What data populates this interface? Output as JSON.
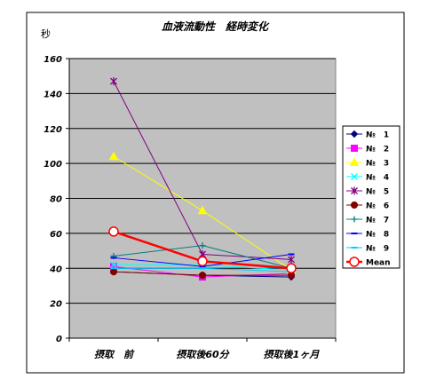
{
  "chart_data": {
    "type": "line",
    "title": "血液流動性　経時変化",
    "ylabel": "秒",
    "xlabel": "",
    "categories": [
      "摂取　前",
      "摂取後60分",
      "摂取後1ヶ月"
    ],
    "ylim": [
      0,
      160
    ],
    "yticks": [
      0,
      20,
      40,
      60,
      80,
      100,
      120,
      140,
      160
    ],
    "grid": true,
    "legend_position": "right",
    "plot_background": "#c0c0c0",
    "series": [
      {
        "name": "№　1",
        "values": [
          38,
          36,
          35
        ],
        "color": "#000080",
        "marker": "diamond"
      },
      {
        "name": "№　2",
        "values": [
          41,
          35,
          37
        ],
        "color": "#ff00ff",
        "marker": "square"
      },
      {
        "name": "№　3",
        "values": [
          104,
          73,
          39
        ],
        "color": "#ffff00",
        "marker": "triangle"
      },
      {
        "name": "№　4",
        "values": [
          42,
          42,
          39
        ],
        "color": "#00ffff",
        "marker": "x"
      },
      {
        "name": "№　5",
        "values": [
          147,
          48,
          45
        ],
        "color": "#800080",
        "marker": "star"
      },
      {
        "name": "№　6",
        "values": [
          38,
          36,
          36
        ],
        "color": "#800000",
        "marker": "circle"
      },
      {
        "name": "№　7",
        "values": [
          47,
          53,
          40
        ],
        "color": "#008080",
        "marker": "plus"
      },
      {
        "name": "№　8",
        "values": [
          46,
          41,
          48
        ],
        "color": "#0000ff",
        "marker": "dash"
      },
      {
        "name": "№　9",
        "values": [
          40,
          40,
          38
        ],
        "color": "#00ccff",
        "marker": "dash"
      },
      {
        "name": "Mean",
        "values": [
          61,
          44,
          40
        ],
        "color": "#ff0000",
        "marker": "open-circle",
        "bold": true
      }
    ]
  }
}
